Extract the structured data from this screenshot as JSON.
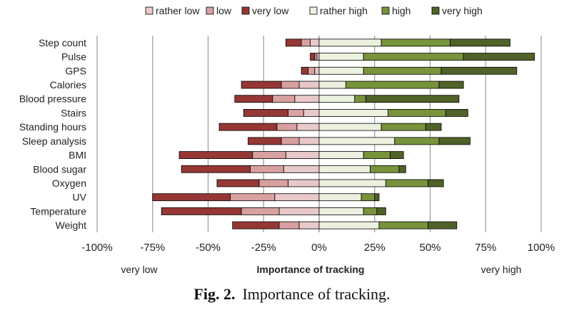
{
  "chart_data": {
    "type": "bar",
    "orientation": "horizontal",
    "stacked": "diverging",
    "title": "",
    "xlabel": "Importance of tracking",
    "x_left_note": "very low",
    "x_right_note": "very high",
    "xlim": [
      -100,
      100
    ],
    "xticks": [
      "-100%",
      "-75%",
      "-50%",
      "-25%",
      "0%",
      "25%",
      "50%",
      "75%",
      "100%"
    ],
    "grid": "vertical",
    "legend_position": "top",
    "categories": [
      "Step count",
      "Pulse",
      "GPS",
      "Calories",
      "Blood pressure",
      "Stairs",
      "Standing hours",
      "Sleep analysis",
      "BMI",
      "Blood sugar",
      "Oxygen",
      "UV",
      "Temperature",
      "Weight"
    ],
    "series": [
      {
        "name": "rather low",
        "side": "negative",
        "color": "#e8c8c8",
        "values": [
          4,
          1,
          2,
          9,
          11,
          7,
          10,
          9,
          15,
          16,
          14,
          20,
          18,
          9
        ]
      },
      {
        "name": "low",
        "side": "negative",
        "color": "#d8a0a0",
        "values": [
          4,
          1,
          3,
          8,
          10,
          7,
          9,
          8,
          15,
          15,
          13,
          20,
          17,
          9
        ]
      },
      {
        "name": "very low",
        "side": "negative",
        "color": "#953735",
        "values": [
          7,
          2,
          3,
          18,
          17,
          20,
          26,
          15,
          33,
          31,
          19,
          35,
          36,
          21
        ]
      },
      {
        "name": "rather high",
        "side": "positive",
        "color": "#ebf1de",
        "values": [
          28,
          20,
          20,
          12,
          16,
          31,
          28,
          34,
          20,
          23,
          30,
          19,
          20,
          27
        ]
      },
      {
        "name": "high",
        "side": "positive",
        "color": "#77933c",
        "values": [
          31,
          45,
          35,
          42,
          5,
          26,
          20,
          20,
          12,
          13,
          19,
          6,
          6,
          22
        ]
      },
      {
        "name": "very high",
        "side": "positive",
        "color": "#4f6228",
        "values": [
          27,
          32,
          34,
          11,
          42,
          10,
          7,
          14,
          6,
          3,
          7,
          2,
          4,
          13
        ]
      }
    ]
  },
  "caption": {
    "number": "Fig. 2.",
    "text": "Importance of tracking."
  }
}
